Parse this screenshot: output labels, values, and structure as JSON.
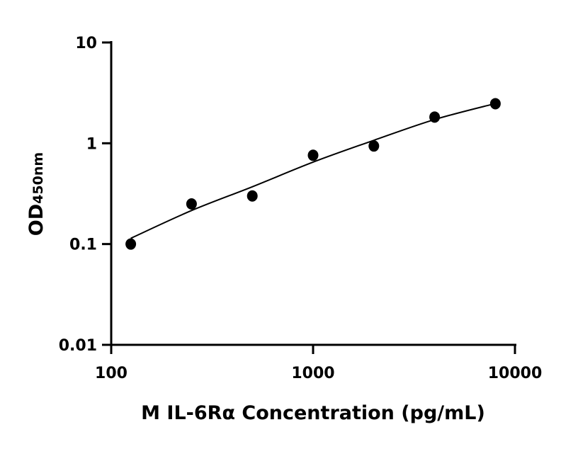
{
  "chart_data": {
    "type": "scatter",
    "title": "",
    "xlabel": "M IL-6Rα Concentration (pg/mL)",
    "ylabel": "OD",
    "ylabel_subscript": "450nm",
    "xscale": "log",
    "yscale": "log",
    "xlim": [
      100,
      10000
    ],
    "ylim": [
      0.01,
      10
    ],
    "x_ticks": [
      100,
      1000,
      10000
    ],
    "x_tick_labels": [
      "100",
      "1000",
      "10000"
    ],
    "y_ticks": [
      0.01,
      0.1,
      1,
      10
    ],
    "y_tick_labels": [
      "0.01",
      "0.1",
      "1",
      "10"
    ],
    "grid": false,
    "legend": "none",
    "series": [
      {
        "x": [
          125,
          250,
          500,
          1000,
          2000,
          4000,
          8000
        ],
        "y": [
          0.1,
          0.25,
          0.3,
          0.76,
          0.94,
          1.82,
          2.47
        ],
        "marker": "filled-circle",
        "color": "#000000"
      }
    ],
    "fit_curve": {
      "x": [
        125,
        250,
        500,
        1000,
        2000,
        4000,
        8000
      ],
      "y": [
        0.114,
        0.215,
        0.37,
        0.65,
        1.07,
        1.72,
        2.48
      ],
      "color": "#000000"
    }
  }
}
